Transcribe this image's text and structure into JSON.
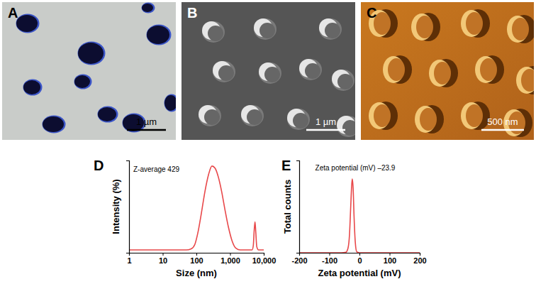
{
  "images": [
    {
      "panel": "A",
      "scale_bar": "1 µm"
    },
    {
      "panel": "B",
      "scale_bar": "1 µm"
    },
    {
      "panel": "C",
      "scale_bar": "500 nm"
    }
  ],
  "chart_data": [
    {
      "panel": "D",
      "type": "line",
      "x_label": "Size (nm)",
      "y_label": "Intensity (%)",
      "annotation": "Z-average 429",
      "log": "x",
      "tick_labels": "x",
      "color": "#e8484a",
      "xlim": [
        1,
        10000
      ],
      "xticks": [
        1,
        10,
        100,
        {
          "value": 1000,
          "label": "1,000"
        },
        {
          "value": 10000,
          "label": "10,000"
        }
      ],
      "ylim": [
        -0.5,
        16
      ],
      "x": [
        1,
        5,
        20,
        50,
        70,
        90,
        110,
        140,
        180,
        230,
        290,
        360,
        450,
        560,
        700,
        900,
        1150,
        1500,
        2000,
        3000,
        4500,
        4900,
        5200,
        5500,
        5800,
        6200,
        7000,
        10000
      ],
      "values": [
        0,
        0,
        0,
        0,
        0.2,
        1,
        3,
        6.5,
        10.5,
        13.5,
        15,
        14.6,
        13,
        10.5,
        7.3,
        4,
        1.6,
        0.3,
        0,
        0,
        0,
        0.8,
        3.5,
        5,
        3.2,
        0.6,
        0,
        0
      ]
    },
    {
      "panel": "E",
      "type": "line",
      "x_label": "Zeta potential (mV)",
      "y_label": "Total counts",
      "annotation": "Zeta potential (mV) –23.9",
      "tick_labels": "x",
      "color": "#e8484a",
      "xlim": [
        -200,
        200
      ],
      "xticks": [
        -200,
        -100,
        0,
        100,
        200
      ],
      "ylim": [
        0,
        100
      ],
      "x": [
        -200,
        -100,
        -60,
        -45,
        -38,
        -33,
        -29,
        -26,
        -23.9,
        -21,
        -18,
        -14,
        -9,
        0,
        100,
        200
      ],
      "values": [
        0,
        0,
        0,
        0.5,
        5,
        20,
        50,
        72,
        80,
        70,
        40,
        12,
        1,
        0,
        0,
        0
      ]
    }
  ]
}
